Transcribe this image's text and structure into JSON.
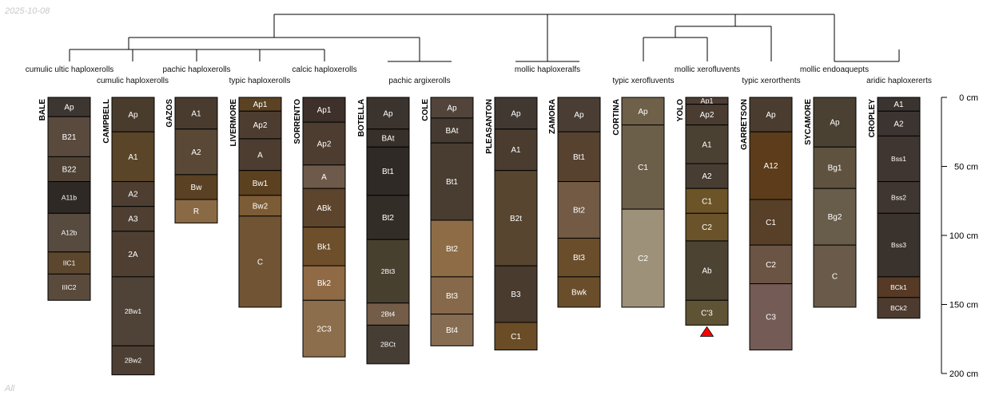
{
  "header": {
    "date": "2025-10-08"
  },
  "footer": {
    "subset": "All"
  },
  "depth_axis": {
    "ticks": [
      "0 cm",
      "50 cm",
      "100 cm",
      "150 cm",
      "200 cm"
    ],
    "values": [
      0,
      50,
      100,
      150,
      200
    ]
  },
  "taxa": [
    "cumulic ultic haploxerolls",
    "cumulic haploxerolls",
    "pachic haploxerolls",
    "typic haploxerolls",
    "calcic haploxerolls",
    "pachic argixerolls",
    "mollic haploxeralfs",
    "typic xerofluvents",
    "mollic xerofluvents",
    "typic xerorthents",
    "mollic endoaquepts",
    "aridic haploxererts"
  ],
  "profiles": [
    {
      "name": "BALE",
      "horizons": [
        {
          "name": "Ap",
          "top": 0,
          "bottom": 14,
          "color": "#3d3530"
        },
        {
          "name": "B21",
          "top": 14,
          "bottom": 43,
          "color": "#5a4a3e"
        },
        {
          "name": "B22",
          "top": 43,
          "bottom": 61,
          "color": "#4e4134"
        },
        {
          "name": "A11b",
          "top": 61,
          "bottom": 84,
          "color": "#2f2925"
        },
        {
          "name": "A12b",
          "top": 84,
          "bottom": 112,
          "color": "#574a3f"
        },
        {
          "name": "IIC1",
          "top": 112,
          "bottom": 128,
          "color": "#5c472e"
        },
        {
          "name": "IIIC2",
          "top": 128,
          "bottom": 147,
          "color": "#5a4a3c"
        }
      ]
    },
    {
      "name": "CAMPBELL",
      "horizons": [
        {
          "name": "Ap",
          "top": 0,
          "bottom": 25,
          "color": "#4a3c2d"
        },
        {
          "name": "A1",
          "top": 25,
          "bottom": 61,
          "color": "#5a4529"
        },
        {
          "name": "A2",
          "top": 61,
          "bottom": 79,
          "color": "#4d3e31"
        },
        {
          "name": "A3",
          "top": 79,
          "bottom": 97,
          "color": "#4e3f32"
        },
        {
          "name": "2A",
          "top": 97,
          "bottom": 130,
          "color": "#4e3f32"
        },
        {
          "name": "2Bw1",
          "top": 130,
          "bottom": 180,
          "color": "#4f4236"
        },
        {
          "name": "2Bw2",
          "top": 180,
          "bottom": 201,
          "color": "#4d3f33"
        }
      ]
    },
    {
      "name": "GAZOS",
      "horizons": [
        {
          "name": "A1",
          "top": 0,
          "bottom": 23,
          "color": "#4a3b2f"
        },
        {
          "name": "A2",
          "top": 23,
          "bottom": 56,
          "color": "#594836"
        },
        {
          "name": "Bw",
          "top": 56,
          "bottom": 74,
          "color": "#5a4124"
        },
        {
          "name": "R",
          "top": 74,
          "bottom": 91,
          "color": "#8a6a45"
        }
      ]
    },
    {
      "name": "LIVERMORE",
      "horizons": [
        {
          "name": "Ap1",
          "top": 0,
          "bottom": 10,
          "color": "#5a4223"
        },
        {
          "name": "Ap2",
          "top": 10,
          "bottom": 30,
          "color": "#4c3d30"
        },
        {
          "name": "A",
          "top": 30,
          "bottom": 53,
          "color": "#4c3d30"
        },
        {
          "name": "Bw1",
          "top": 53,
          "bottom": 71,
          "color": "#5c4120"
        },
        {
          "name": "Bw2",
          "top": 71,
          "bottom": 86,
          "color": "#7c5c36"
        },
        {
          "name": "C",
          "top": 86,
          "bottom": 152,
          "color": "#705434"
        }
      ]
    },
    {
      "name": "SORRENTO",
      "horizons": [
        {
          "name": "Ap1",
          "top": 0,
          "bottom": 18,
          "color": "#3e302a"
        },
        {
          "name": "Ap2",
          "top": 18,
          "bottom": 49,
          "color": "#4d3d31"
        },
        {
          "name": "A",
          "top": 49,
          "bottom": 66,
          "color": "#6e5a4a"
        },
        {
          "name": "ABk",
          "top": 66,
          "bottom": 94,
          "color": "#5c442d"
        },
        {
          "name": "Bk1",
          "top": 94,
          "bottom": 122,
          "color": "#6e4f2b"
        },
        {
          "name": "Bk2",
          "top": 122,
          "bottom": 147,
          "color": "#8f6a44"
        },
        {
          "name": "2C3",
          "top": 147,
          "bottom": 188,
          "color": "#8d6e4c"
        }
      ]
    },
    {
      "name": "BOTELLA",
      "horizons": [
        {
          "name": "Ap",
          "top": 0,
          "bottom": 23,
          "color": "#3b332d"
        },
        {
          "name": "BAt",
          "top": 23,
          "bottom": 36,
          "color": "#37302a"
        },
        {
          "name": "Bt1",
          "top": 36,
          "bottom": 71,
          "color": "#2f2a25"
        },
        {
          "name": "Bt2",
          "top": 71,
          "bottom": 103,
          "color": "#332d28"
        },
        {
          "name": "2Bt3",
          "top": 103,
          "bottom": 149,
          "color": "#48402f"
        },
        {
          "name": "2Bt4",
          "top": 149,
          "bottom": 165,
          "color": "#735c48"
        },
        {
          "name": "2BCt",
          "top": 165,
          "bottom": 193,
          "color": "#463d34"
        }
      ]
    },
    {
      "name": "COLE",
      "horizons": [
        {
          "name": "Ap",
          "top": 0,
          "bottom": 15,
          "color": "#52443a"
        },
        {
          "name": "BAt",
          "top": 15,
          "bottom": 33,
          "color": "#453a31"
        },
        {
          "name": "Bt1",
          "top": 33,
          "bottom": 89,
          "color": "#493d31"
        },
        {
          "name": "Bt2",
          "top": 89,
          "bottom": 130,
          "color": "#8e6d46"
        },
        {
          "name": "Bt3",
          "top": 130,
          "bottom": 157,
          "color": "#86694a"
        },
        {
          "name": "Bt4",
          "top": 157,
          "bottom": 180,
          "color": "#866d52"
        }
      ]
    },
    {
      "name": "PLEASANTON",
      "horizons": [
        {
          "name": "Ap",
          "top": 0,
          "bottom": 23,
          "color": "#413832"
        },
        {
          "name": "A1",
          "top": 23,
          "bottom": 53,
          "color": "#4a3c2e"
        },
        {
          "name": "B2t",
          "top": 53,
          "bottom": 122,
          "color": "#574530"
        },
        {
          "name": "B3",
          "top": 122,
          "bottom": 163,
          "color": "#493b2d"
        },
        {
          "name": "C1",
          "top": 163,
          "bottom": 183,
          "color": "#6a4c26"
        }
      ]
    },
    {
      "name": "ZAMORA",
      "horizons": [
        {
          "name": "Ap",
          "top": 0,
          "bottom": 25,
          "color": "#4a3d33"
        },
        {
          "name": "Bt1",
          "top": 25,
          "bottom": 61,
          "color": "#574230"
        },
        {
          "name": "Bt2",
          "top": 61,
          "bottom": 102,
          "color": "#735a45"
        },
        {
          "name": "Bt3",
          "top": 102,
          "bottom": 130,
          "color": "#6a4d2b"
        },
        {
          "name": "Bwk",
          "top": 130,
          "bottom": 152,
          "color": "#6a4d2b"
        }
      ]
    },
    {
      "name": "CORTINA",
      "horizons": [
        {
          "name": "Ap",
          "top": 0,
          "bottom": 20,
          "color": "#6e6049"
        },
        {
          "name": "C1",
          "top": 20,
          "bottom": 81,
          "color": "#6c5f4a"
        },
        {
          "name": "C2",
          "top": 81,
          "bottom": 152,
          "color": "#9e9179"
        }
      ]
    },
    {
      "name": "YOLO",
      "horizons": [
        {
          "name": "Ap1",
          "top": 0,
          "bottom": 5,
          "color": "#4d3d33"
        },
        {
          "name": "Ap2",
          "top": 5,
          "bottom": 20,
          "color": "#4a3c31"
        },
        {
          "name": "A1",
          "top": 20,
          "bottom": 48,
          "color": "#4a4132"
        },
        {
          "name": "A2",
          "top": 48,
          "bottom": 66,
          "color": "#473d33"
        },
        {
          "name": "C1",
          "top": 66,
          "bottom": 84,
          "color": "#6c5428"
        },
        {
          "name": "C2",
          "top": 84,
          "bottom": 104,
          "color": "#6a532a"
        },
        {
          "name": "Ab",
          "top": 104,
          "bottom": 147,
          "color": "#4d4332"
        },
        {
          "name": "C'3",
          "top": 147,
          "bottom": 165,
          "color": "#5f5335"
        }
      ]
    },
    {
      "name": "GARRETSON",
      "horizons": [
        {
          "name": "Ap",
          "top": 0,
          "bottom": 25,
          "color": "#4a3d30"
        },
        {
          "name": "A12",
          "top": 25,
          "bottom": 74,
          "color": "#5c3c1a"
        },
        {
          "name": "C1",
          "top": 74,
          "bottom": 107,
          "color": "#583f28"
        },
        {
          "name": "C2",
          "top": 107,
          "bottom": 135,
          "color": "#6b5443"
        },
        {
          "name": "C3",
          "top": 135,
          "bottom": 183,
          "color": "#745b55"
        }
      ]
    },
    {
      "name": "SYCAMORE",
      "horizons": [
        {
          "name": "Ap",
          "top": 0,
          "bottom": 36,
          "color": "#4a4133"
        },
        {
          "name": "Bg1",
          "top": 36,
          "bottom": 66,
          "color": "#5f5340"
        },
        {
          "name": "Bg2",
          "top": 66,
          "bottom": 107,
          "color": "#685c4a"
        },
        {
          "name": "C",
          "top": 107,
          "bottom": 152,
          "color": "#6a5a49"
        }
      ]
    },
    {
      "name": "CROPLEY",
      "horizons": [
        {
          "name": "A1",
          "top": 0,
          "bottom": 10,
          "color": "#3a3330"
        },
        {
          "name": "A2",
          "top": 10,
          "bottom": 28,
          "color": "#3c3430"
        },
        {
          "name": "Bss1",
          "top": 28,
          "bottom": 61,
          "color": "#3f3631"
        },
        {
          "name": "Bss2",
          "top": 61,
          "bottom": 84,
          "color": "#3f3631"
        },
        {
          "name": "Bss3",
          "top": 84,
          "bottom": 130,
          "color": "#3a322d"
        },
        {
          "name": "BCk1",
          "top": 130,
          "bottom": 145,
          "color": "#563a26"
        },
        {
          "name": "BCk2",
          "top": 145,
          "bottom": 160,
          "color": "#4e3b2f"
        }
      ]
    }
  ],
  "markers": {
    "color": "#ff0000"
  }
}
